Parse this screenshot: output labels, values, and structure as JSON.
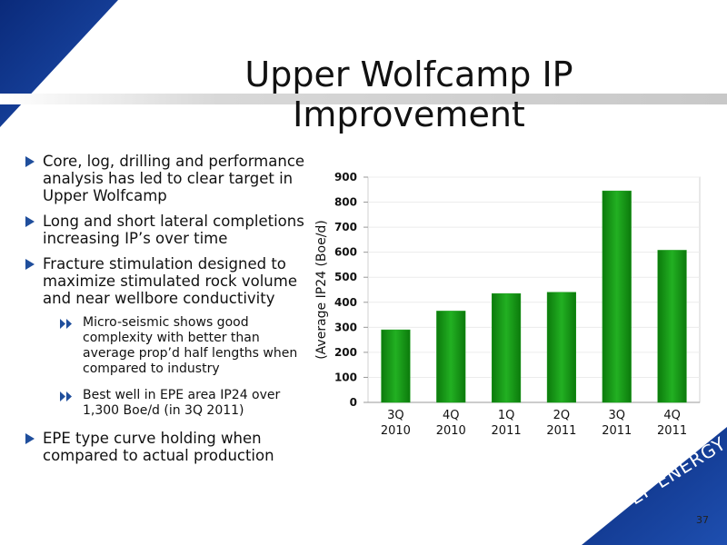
{
  "title": "Upper Wolfcamp IP Improvement",
  "bullets": [
    {
      "level": 1,
      "text": "Core, log, drilling and performance analysis has led to clear target in Upper Wolfcamp"
    },
    {
      "level": 1,
      "text": "Long and short lateral completions increasing IP’s over time"
    },
    {
      "level": 1,
      "text": "Fracture stimulation designed to maximize stimulated rock volume and near wellbore conductivity"
    },
    {
      "level": 2,
      "text": "Micro-seismic shows good complexity with better than average prop’d half lengths when compared to industry"
    },
    {
      "level": 2,
      "text": "Best well in EPE area IP24 over 1,300 Boe/d (in 3Q 2011)"
    },
    {
      "level": 1,
      "text": "EPE type curve holding when compared to actual production"
    }
  ],
  "logo": "EP ENERGY",
  "page_number": "37",
  "chart_data": {
    "type": "bar",
    "y_label": "(Average IP24 (Boe/d)",
    "categories": [
      "3Q 2010",
      "4Q 2010",
      "1Q 2011",
      "2Q 2011",
      "3Q 2011",
      "4Q 2011"
    ],
    "values": [
      290,
      365,
      435,
      440,
      845,
      608
    ],
    "color": "#1a9a1a",
    "ylim": [
      0,
      900
    ],
    "yticks": [
      0,
      100,
      200,
      300,
      400,
      500,
      600,
      700,
      800,
      900
    ],
    "grid": true
  }
}
